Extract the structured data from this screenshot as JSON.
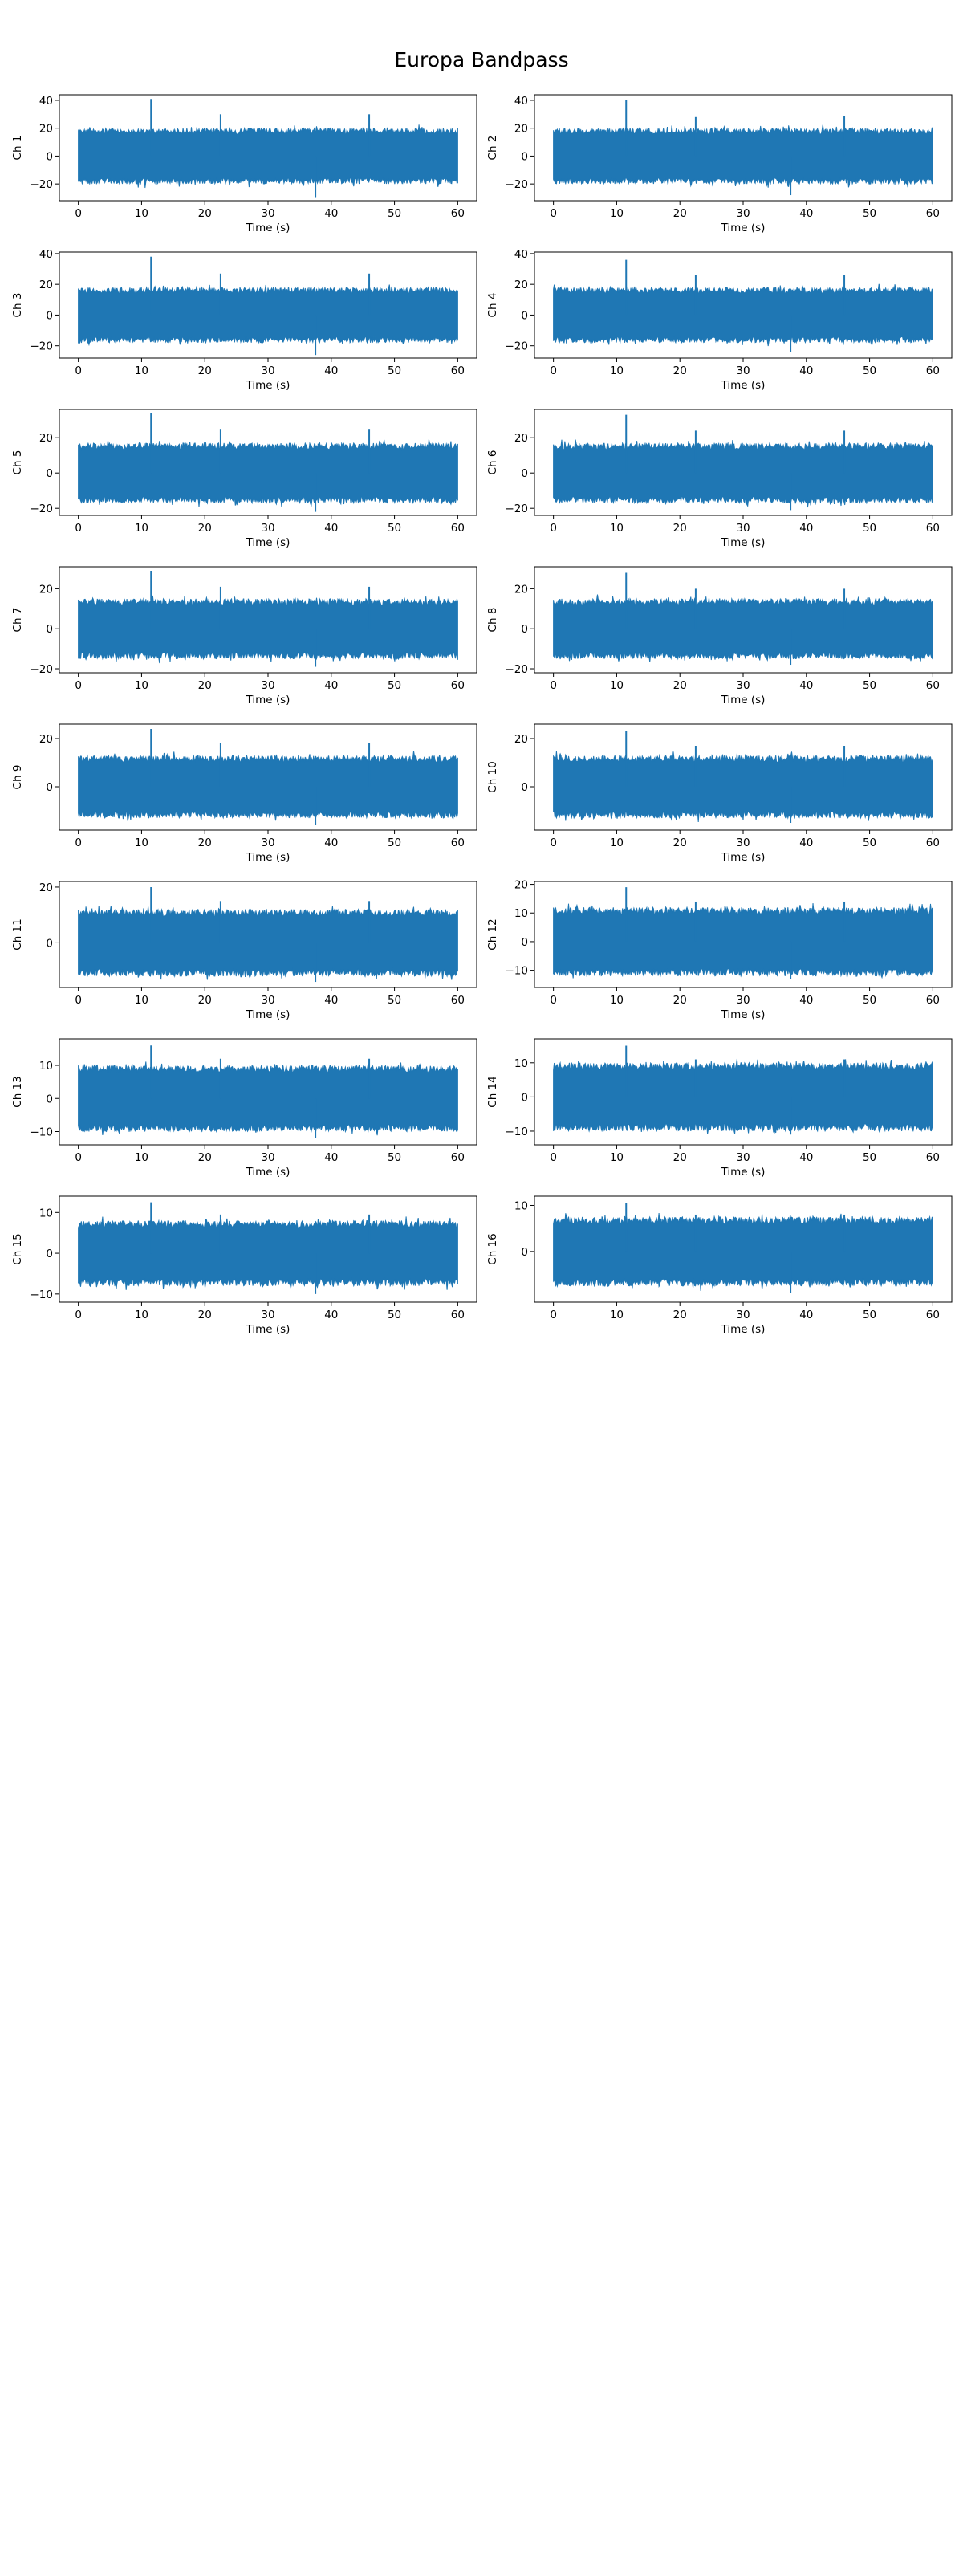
{
  "figure": {
    "title": "Europa Bandpass",
    "line_color": "#1f77b4"
  },
  "chart_data": [
    {
      "type": "line",
      "ylabel": "Ch 1",
      "xlabel": "Time (s)",
      "xlim": [
        -3,
        63
      ],
      "x_ticks": [
        0,
        10,
        20,
        30,
        40,
        50,
        60
      ],
      "ylim": [
        -32,
        44
      ],
      "y_ticks": [
        -20,
        0,
        20,
        40
      ],
      "amplitude": 20,
      "series": [
        {
          "x_range": [
            0,
            60
          ],
          "spikes": [
            {
              "x": 11.5,
              "y": 41
            },
            {
              "x": 22.5,
              "y": 30
            },
            {
              "x": 37.5,
              "y": -30
            },
            {
              "x": 46,
              "y": 30
            }
          ]
        }
      ]
    },
    {
      "type": "line",
      "ylabel": "Ch 2",
      "xlabel": "Time (s)",
      "xlim": [
        -3,
        63
      ],
      "x_ticks": [
        0,
        10,
        20,
        30,
        40,
        50,
        60
      ],
      "ylim": [
        -32,
        44
      ],
      "y_ticks": [
        -20,
        0,
        20,
        40
      ],
      "amplitude": 20,
      "series": [
        {
          "x_range": [
            0,
            60
          ],
          "spikes": [
            {
              "x": 11.5,
              "y": 40
            },
            {
              "x": 22.5,
              "y": 28
            },
            {
              "x": 37.5,
              "y": -28
            },
            {
              "x": 46,
              "y": 29
            }
          ]
        }
      ]
    },
    {
      "type": "line",
      "ylabel": "Ch 3",
      "xlabel": "Time (s)",
      "xlim": [
        -3,
        63
      ],
      "x_ticks": [
        0,
        10,
        20,
        30,
        40,
        50,
        60
      ],
      "ylim": [
        -28,
        41
      ],
      "y_ticks": [
        -20,
        0,
        20,
        40
      ],
      "amplitude": 18,
      "series": [
        {
          "x_range": [
            0,
            60
          ],
          "spikes": [
            {
              "x": 11.5,
              "y": 38
            },
            {
              "x": 22.5,
              "y": 27
            },
            {
              "x": 37.5,
              "y": -26
            },
            {
              "x": 46,
              "y": 27
            }
          ]
        }
      ]
    },
    {
      "type": "line",
      "ylabel": "Ch 4",
      "xlabel": "Time (s)",
      "xlim": [
        -3,
        63
      ],
      "x_ticks": [
        0,
        10,
        20,
        30,
        40,
        50,
        60
      ],
      "ylim": [
        -28,
        41
      ],
      "y_ticks": [
        -20,
        0,
        20,
        40
      ],
      "amplitude": 18,
      "series": [
        {
          "x_range": [
            0,
            60
          ],
          "spikes": [
            {
              "x": 11.5,
              "y": 36
            },
            {
              "x": 22.5,
              "y": 26
            },
            {
              "x": 37.5,
              "y": -24
            },
            {
              "x": 46,
              "y": 26
            }
          ]
        }
      ]
    },
    {
      "type": "line",
      "ylabel": "Ch 5",
      "xlabel": "Time (s)",
      "xlim": [
        -3,
        63
      ],
      "x_ticks": [
        0,
        10,
        20,
        30,
        40,
        50,
        60
      ],
      "ylim": [
        -24,
        36
      ],
      "y_ticks": [
        -20,
        0,
        20
      ],
      "amplitude": 17,
      "series": [
        {
          "x_range": [
            0,
            60
          ],
          "spikes": [
            {
              "x": 11.5,
              "y": 34
            },
            {
              "x": 22.5,
              "y": 25
            },
            {
              "x": 37.5,
              "y": -22
            },
            {
              "x": 46,
              "y": 25
            }
          ]
        }
      ]
    },
    {
      "type": "line",
      "ylabel": "Ch 6",
      "xlabel": "Time (s)",
      "xlim": [
        -3,
        63
      ],
      "x_ticks": [
        0,
        10,
        20,
        30,
        40,
        50,
        60
      ],
      "ylim": [
        -24,
        36
      ],
      "y_ticks": [
        -20,
        0,
        20
      ],
      "amplitude": 17,
      "series": [
        {
          "x_range": [
            0,
            60
          ],
          "spikes": [
            {
              "x": 11.5,
              "y": 33
            },
            {
              "x": 22.5,
              "y": 24
            },
            {
              "x": 37.5,
              "y": -21
            },
            {
              "x": 46,
              "y": 24
            }
          ]
        }
      ]
    },
    {
      "type": "line",
      "ylabel": "Ch 7",
      "xlabel": "Time (s)",
      "xlim": [
        -3,
        63
      ],
      "x_ticks": [
        0,
        10,
        20,
        30,
        40,
        50,
        60
      ],
      "ylim": [
        -22,
        31
      ],
      "y_ticks": [
        -20,
        0,
        20
      ],
      "amplitude": 15,
      "series": [
        {
          "x_range": [
            0,
            60
          ],
          "spikes": [
            {
              "x": 11.5,
              "y": 29
            },
            {
              "x": 22.5,
              "y": 21
            },
            {
              "x": 37.5,
              "y": -19
            },
            {
              "x": 46,
              "y": 21
            }
          ]
        }
      ]
    },
    {
      "type": "line",
      "ylabel": "Ch 8",
      "xlabel": "Time (s)",
      "xlim": [
        -3,
        63
      ],
      "x_ticks": [
        0,
        10,
        20,
        30,
        40,
        50,
        60
      ],
      "ylim": [
        -22,
        31
      ],
      "y_ticks": [
        -20,
        0,
        20
      ],
      "amplitude": 15,
      "series": [
        {
          "x_range": [
            0,
            60
          ],
          "spikes": [
            {
              "x": 11.5,
              "y": 28
            },
            {
              "x": 22.5,
              "y": 20
            },
            {
              "x": 37.5,
              "y": -18
            },
            {
              "x": 46,
              "y": 20
            }
          ]
        }
      ]
    },
    {
      "type": "line",
      "ylabel": "Ch 9",
      "xlabel": "Time (s)",
      "xlim": [
        -3,
        63
      ],
      "x_ticks": [
        0,
        10,
        20,
        30,
        40,
        50,
        60
      ],
      "ylim": [
        -18,
        26
      ],
      "y_ticks": [
        0,
        20
      ],
      "amplitude": 13,
      "series": [
        {
          "x_range": [
            0,
            60
          ],
          "spikes": [
            {
              "x": 11.5,
              "y": 24
            },
            {
              "x": 22.5,
              "y": 18
            },
            {
              "x": 37.5,
              "y": -16
            },
            {
              "x": 46,
              "y": 18
            }
          ]
        }
      ]
    },
    {
      "type": "line",
      "ylabel": "Ch 10",
      "xlabel": "Time (s)",
      "xlim": [
        -3,
        63
      ],
      "x_ticks": [
        0,
        10,
        20,
        30,
        40,
        50,
        60
      ],
      "ylim": [
        -18,
        26
      ],
      "y_ticks": [
        0,
        20
      ],
      "amplitude": 13,
      "series": [
        {
          "x_range": [
            0,
            60
          ],
          "spikes": [
            {
              "x": 11.5,
              "y": 23
            },
            {
              "x": 22.5,
              "y": 17
            },
            {
              "x": 37.5,
              "y": -15
            },
            {
              "x": 46,
              "y": 17
            }
          ]
        }
      ]
    },
    {
      "type": "line",
      "ylabel": "Ch 11",
      "xlabel": "Time (s)",
      "xlim": [
        -3,
        63
      ],
      "x_ticks": [
        0,
        10,
        20,
        30,
        40,
        50,
        60
      ],
      "ylim": [
        -16,
        22
      ],
      "y_ticks": [
        0,
        20
      ],
      "amplitude": 12,
      "series": [
        {
          "x_range": [
            0,
            60
          ],
          "spikes": [
            {
              "x": 11.5,
              "y": 20
            },
            {
              "x": 22.5,
              "y": 15
            },
            {
              "x": 37.5,
              "y": -14
            },
            {
              "x": 46,
              "y": 15
            }
          ]
        }
      ]
    },
    {
      "type": "line",
      "ylabel": "Ch 12",
      "xlabel": "Time (s)",
      "xlim": [
        -3,
        63
      ],
      "x_ticks": [
        0,
        10,
        20,
        30,
        40,
        50,
        60
      ],
      "ylim": [
        -16,
        21
      ],
      "y_ticks": [
        -10,
        0,
        10,
        20
      ],
      "amplitude": 12,
      "series": [
        {
          "x_range": [
            0,
            60
          ],
          "spikes": [
            {
              "x": 11.5,
              "y": 19
            },
            {
              "x": 22.5,
              "y": 14
            },
            {
              "x": 37.5,
              "y": -13
            },
            {
              "x": 46,
              "y": 14
            }
          ]
        }
      ]
    },
    {
      "type": "line",
      "ylabel": "Ch 13",
      "xlabel": "Time (s)",
      "xlim": [
        -3,
        63
      ],
      "x_ticks": [
        0,
        10,
        20,
        30,
        40,
        50,
        60
      ],
      "ylim": [
        -14,
        18
      ],
      "y_ticks": [
        -10,
        0,
        10
      ],
      "amplitude": 10,
      "series": [
        {
          "x_range": [
            0,
            60
          ],
          "spikes": [
            {
              "x": 11.5,
              "y": 16
            },
            {
              "x": 22.5,
              "y": 12
            },
            {
              "x": 37.5,
              "y": -12
            },
            {
              "x": 46,
              "y": 12
            }
          ]
        }
      ]
    },
    {
      "type": "line",
      "ylabel": "Ch 14",
      "xlabel": "Time (s)",
      "xlim": [
        -3,
        63
      ],
      "x_ticks": [
        0,
        10,
        20,
        30,
        40,
        50,
        60
      ],
      "ylim": [
        -14,
        17
      ],
      "y_ticks": [
        -10,
        0,
        10
      ],
      "amplitude": 10,
      "series": [
        {
          "x_range": [
            0,
            60
          ],
          "spikes": [
            {
              "x": 11.5,
              "y": 15
            },
            {
              "x": 22.5,
              "y": 11
            },
            {
              "x": 37.5,
              "y": -11
            },
            {
              "x": 46,
              "y": 11
            }
          ]
        }
      ]
    },
    {
      "type": "line",
      "ylabel": "Ch 15",
      "xlabel": "Time (s)",
      "xlim": [
        -3,
        63
      ],
      "x_ticks": [
        0,
        10,
        20,
        30,
        40,
        50,
        60
      ],
      "ylim": [
        -12,
        14
      ],
      "y_ticks": [
        -10,
        0,
        10
      ],
      "amplitude": 8,
      "series": [
        {
          "x_range": [
            0,
            60
          ],
          "spikes": [
            {
              "x": 11.5,
              "y": 12.5
            },
            {
              "x": 22.5,
              "y": 9.5
            },
            {
              "x": 37.5,
              "y": -10
            },
            {
              "x": 46,
              "y": 9.5
            }
          ]
        }
      ]
    },
    {
      "type": "line",
      "ylabel": "Ch 16",
      "xlabel": "Time (s)",
      "xlim": [
        -3,
        63
      ],
      "x_ticks": [
        0,
        10,
        20,
        30,
        40,
        50,
        60
      ],
      "ylim": [
        -11,
        12
      ],
      "y_ticks": [
        0,
        10
      ],
      "amplitude": 7.5,
      "series": [
        {
          "x_range": [
            0,
            60
          ],
          "spikes": [
            {
              "x": 11.5,
              "y": 10.5
            },
            {
              "x": 22.5,
              "y": 8
            },
            {
              "x": 37.5,
              "y": -9
            },
            {
              "x": 46,
              "y": 8
            }
          ]
        }
      ]
    }
  ]
}
